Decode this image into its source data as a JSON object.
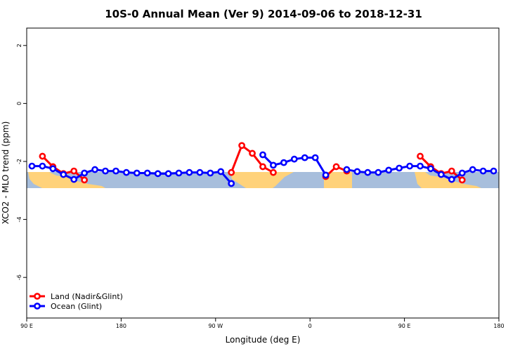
{
  "chart_data": {
    "type": "line",
    "title": "10S-0 Annual Mean (Ver 9)   2014-09-06 to 2018-12-31",
    "x_label": "Longitude (deg E)",
    "y_label": "XCO2 - MLO trend (ppm)",
    "x": [
      95,
      105,
      115,
      125,
      135,
      145,
      155,
      165,
      175,
      185,
      195,
      205,
      215,
      225,
      235,
      245,
      255,
      265,
      275,
      285,
      295,
      305,
      315,
      325,
      335,
      345,
      355,
      365,
      375,
      385,
      395,
      405,
      415,
      425,
      435,
      445,
      455,
      465,
      475,
      485,
      495,
      505,
      515,
      525,
      535
    ],
    "series": [
      {
        "name": "Land (Nadir&Glint)",
        "color": "#ff0000",
        "values": [
          null,
          -1.82,
          -2.18,
          -2.42,
          -2.33,
          -2.64,
          null,
          null,
          null,
          null,
          null,
          null,
          null,
          null,
          null,
          null,
          null,
          null,
          null,
          -2.38,
          -1.45,
          -1.72,
          -2.18,
          -2.38,
          null,
          null,
          null,
          null,
          -2.52,
          -2.18,
          -2.33,
          null,
          null,
          null,
          null,
          null,
          null,
          -1.82,
          -2.18,
          -2.42,
          -2.33,
          -2.64,
          null,
          null,
          null
        ]
      },
      {
        "name": "Ocean (Glint)",
        "color": "#0000ff",
        "values": [
          -2.16,
          -2.16,
          -2.25,
          -2.45,
          -2.62,
          -2.4,
          -2.28,
          -2.33,
          -2.33,
          -2.38,
          -2.4,
          -2.4,
          -2.42,
          -2.42,
          -2.4,
          -2.38,
          -2.38,
          -2.4,
          -2.35,
          -2.76,
          null,
          null,
          -1.77,
          -2.13,
          -2.04,
          -1.92,
          -1.87,
          -1.87,
          -2.47,
          null,
          -2.28,
          -2.35,
          -2.38,
          -2.38,
          -2.3,
          -2.23,
          -2.16,
          -2.16,
          -2.25,
          -2.45,
          -2.62,
          -2.4,
          -2.28,
          -2.33,
          -2.33
        ]
      }
    ],
    "xlim": [
      90,
      540
    ],
    "xticks": [
      {
        "value": 90,
        "label": "90 E"
      },
      180,
      {
        "value": 270,
        "label": "90 W"
      },
      {
        "value": 360,
        "label": "0"
      },
      {
        "value": 450,
        "label": "90 E"
      },
      {
        "value": 540,
        "label": "180"
      }
    ],
    "ylim": [
      -7.4,
      2.6
    ],
    "yticks": [
      -6,
      -4,
      -2,
      0,
      2
    ],
    "legend": "bottom-left"
  }
}
